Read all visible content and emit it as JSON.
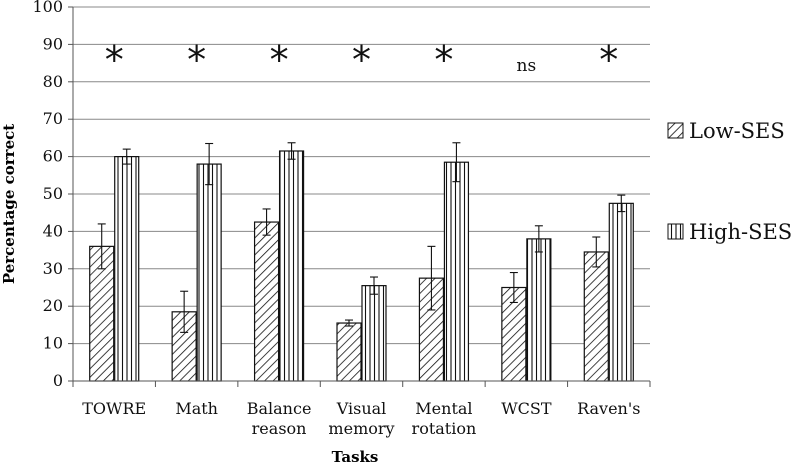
{
  "chart_data": {
    "type": "bar",
    "title": "",
    "xlabel": "Tasks",
    "ylabel": "Percentage correct",
    "ylim": [
      0,
      100
    ],
    "yticks": [
      0,
      10,
      20,
      30,
      40,
      50,
      60,
      70,
      80,
      90,
      100
    ],
    "grid": true,
    "legend_position": "right",
    "categories": [
      [
        "TOWRE"
      ],
      [
        "Math"
      ],
      [
        "Balance",
        "reason"
      ],
      [
        "Visual",
        "memory"
      ],
      [
        "Mental",
        "rotation"
      ],
      [
        "WCST"
      ],
      [
        "Raven's"
      ]
    ],
    "series": [
      {
        "name": "Low-SES",
        "pattern": "diagonal-hatch",
        "values": [
          36,
          18.5,
          42.5,
          15.5,
          27.5,
          25,
          34.5
        ],
        "error": [
          6,
          5.5,
          3.5,
          0.8,
          8.5,
          4,
          4
        ]
      },
      {
        "name": "High-SES",
        "pattern": "vertical-hatch",
        "values": [
          60,
          58,
          61.5,
          25.5,
          58.5,
          38,
          47.5
        ],
        "error": [
          2,
          5.5,
          2.2,
          2.3,
          5.2,
          3.5,
          2.2
        ]
      }
    ],
    "significance": [
      "*",
      "*",
      "*",
      "*",
      "*",
      "ns",
      "*"
    ],
    "significance_y": 89
  }
}
